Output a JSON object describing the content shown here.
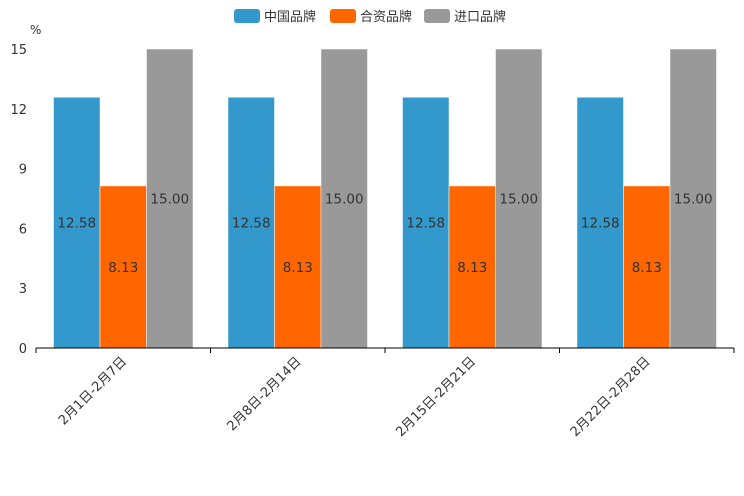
{
  "chart_data": {
    "type": "bar",
    "title": "",
    "xlabel": "",
    "ylabel": "%",
    "ylim": [
      0,
      15
    ],
    "yticks": [
      0,
      3,
      6,
      9,
      12,
      15
    ],
    "categories": [
      "2月1日-2月7日",
      "2月8日-2月14日",
      "2月15日-2月21日",
      "2月22日-2月28日"
    ],
    "series": [
      {
        "name": "中国品牌",
        "color": "#3399CC",
        "values": [
          12.58,
          12.58,
          12.58,
          12.58
        ],
        "labels": [
          "12.58",
          "12.58",
          "12.58",
          "12.58"
        ]
      },
      {
        "name": "合资品牌",
        "color": "#FF6600",
        "values": [
          8.13,
          8.13,
          8.13,
          8.13
        ],
        "labels": [
          "8.13",
          "8.13",
          "8.13",
          "8.13"
        ]
      },
      {
        "name": "进口品牌",
        "color": "#999999",
        "values": [
          15.0,
          15.0,
          15.0,
          15.0
        ],
        "labels": [
          "15.00",
          "15.00",
          "15.00",
          "15.00"
        ]
      }
    ],
    "legend_position": "top-center",
    "grid": false
  }
}
